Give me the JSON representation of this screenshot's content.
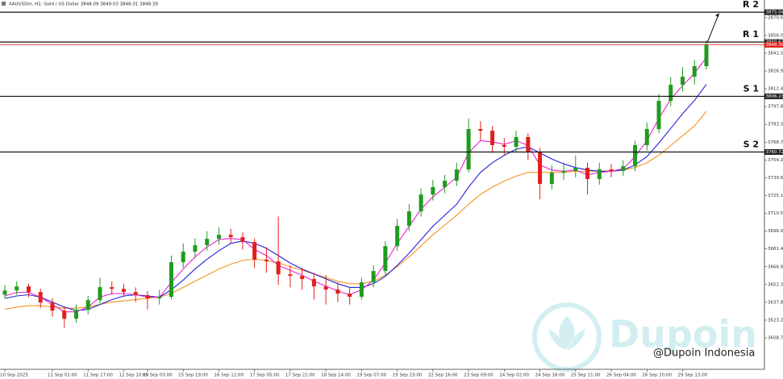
{
  "chart_data": {
    "type": "candlestick",
    "header": "XAUUSDm, H1:  Gold / US Dollar  3848.09 3849.03 3848.01 3848.39",
    "categories": [
      "10 Sep 2025",
      null,
      null,
      null,
      "11 Sep 01:00",
      null,
      null,
      "11 Sep 17:00",
      null,
      null,
      "12 Sep 10:00",
      null,
      "15 Sep 03:00",
      null,
      null,
      "15 Sep 19:00",
      null,
      null,
      "16 Sep 12:00",
      null,
      null,
      "17 Sep 05:00",
      null,
      null,
      "17 Sep 21:00",
      null,
      null,
      "18 Sep 14:00",
      null,
      null,
      "19 Sep 07:00",
      null,
      null,
      "19 Sep 23:00",
      null,
      null,
      "22 Sep 16:00",
      null,
      null,
      "23 Sep 09:00",
      null,
      null,
      "24 Sep 02:00",
      null,
      null,
      "24 Sep 18:00",
      null,
      null,
      "25 Sep 11:00",
      null,
      null,
      "26 Sep 04:00",
      null,
      null,
      "26 Sep 20:00",
      null,
      null,
      "29 Sep 13:00",
      null,
      null
    ],
    "open": [
      3644.0,
      3647.5,
      3650.8,
      3646.2,
      3637.6,
      3631.0,
      3624.4,
      3631.7,
      3639.6,
      3650.2,
      3648.8,
      3646.2,
      3643.6,
      3641.0,
      3642.3,
      3670.6,
      3679.2,
      3684.5,
      3689.7,
      3693.0,
      3691.1,
      3687.1,
      3672.6,
      3671.3,
      3660.7,
      3659.4,
      3656.8,
      3650.8,
      3648.2,
      3644.9,
      3642.3,
      3654.1,
      3663.4,
      3683.8,
      3700.3,
      3712.2,
      3726.0,
      3732.0,
      3737.2,
      3746.5,
      3779.5,
      3778.1,
      3766.3,
      3765.0,
      3772.9,
      3761.0,
      3734.6,
      3743.8,
      3745.2,
      3747.8,
      3738.6,
      3746.5,
      3745.2,
      3749.1,
      3766.3,
      3779.5,
      3802.5,
      3815.7,
      3822.3,
      3830.9
    ],
    "high": [
      3652,
      3655,
      3653,
      3649,
      3641,
      3634,
      3636,
      3643,
      3658,
      3655,
      3653,
      3650,
      3647,
      3648,
      3676,
      3686,
      3690,
      3696,
      3699,
      3698,
      3695,
      3690,
      3683,
      3708,
      3668,
      3666,
      3662,
      3660,
      3654,
      3650,
      3658,
      3668,
      3688,
      3706,
      3718,
      3731,
      3738,
      3742,
      3752,
      3788,
      3786,
      3782,
      3772,
      3778,
      3776,
      3764,
      3750,
      3752,
      3758,
      3752,
      3752,
      3751,
      3754,
      3770,
      3785,
      3808,
      3822,
      3830,
      3836,
      3852
    ],
    "low": [
      3641,
      3644,
      3642,
      3633,
      3626,
      3617,
      3621,
      3628,
      3637,
      3644,
      3642,
      3638,
      3632,
      3636,
      3640,
      3666,
      3674,
      3680,
      3685,
      3686,
      3681,
      3666,
      3662,
      3652,
      3650,
      3648,
      3640,
      3636,
      3638,
      3636,
      3640,
      3650,
      3660,
      3680,
      3696,
      3708,
      3721,
      3727,
      3733,
      3744,
      3770,
      3760,
      3758,
      3761,
      3754,
      3722,
      3730,
      3738,
      3740,
      3726,
      3734,
      3740,
      3741,
      3745,
      3762,
      3776,
      3798,
      3810,
      3816,
      3828
    ],
    "close": [
      3647.5,
      3650.8,
      3646.2,
      3637.6,
      3631.0,
      3624.4,
      3631.7,
      3639.6,
      3650.2,
      3648.8,
      3646.2,
      3643.6,
      3641.0,
      3642.3,
      3670.6,
      3679.2,
      3684.5,
      3689.7,
      3693.0,
      3691.1,
      3687.1,
      3672.6,
      3671.3,
      3660.7,
      3659.4,
      3656.8,
      3650.8,
      3648.2,
      3644.9,
      3642.3,
      3654.1,
      3663.4,
      3683.8,
      3700.3,
      3712.2,
      3726.0,
      3732.0,
      3737.2,
      3746.5,
      3779.5,
      3778.1,
      3766.3,
      3765.0,
      3772.9,
      3761.0,
      3734.6,
      3743.8,
      3745.2,
      3747.8,
      3738.6,
      3746.5,
      3745.2,
      3749.1,
      3766.3,
      3779.5,
      3802.5,
      3815.7,
      3822.3,
      3830.9,
      3848.7
    ],
    "up_color": "#1e9c1e",
    "down_color": "#e0201c",
    "series": [
      {
        "color": "#f7931e",
        "values": [
          3632,
          3634,
          3635,
          3635,
          3634,
          3633,
          3633,
          3634,
          3636,
          3638,
          3639,
          3640,
          3641,
          3642,
          3645,
          3650,
          3655,
          3660,
          3665,
          3669,
          3672,
          3673,
          3672,
          3670,
          3667,
          3664,
          3661,
          3658,
          3655,
          3653,
          3653,
          3655,
          3660,
          3667,
          3675,
          3684,
          3693,
          3701,
          3709,
          3718,
          3726,
          3732,
          3737,
          3741,
          3744,
          3744,
          3744,
          3744,
          3745,
          3745,
          3745,
          3745,
          3746,
          3748,
          3752,
          3758,
          3766,
          3774,
          3782,
          3794
        ]
      },
      {
        "color": "#2323d8",
        "values": [
          3641,
          3643,
          3644,
          3642,
          3638,
          3634,
          3631,
          3632,
          3636,
          3640,
          3643,
          3644,
          3643,
          3642,
          3648,
          3656,
          3665,
          3673,
          3680,
          3686,
          3688,
          3686,
          3682,
          3676,
          3670,
          3665,
          3661,
          3657,
          3653,
          3650,
          3650,
          3653,
          3659,
          3668,
          3678,
          3689,
          3700,
          3709,
          3718,
          3732,
          3744,
          3752,
          3758,
          3763,
          3765,
          3760,
          3755,
          3751,
          3748,
          3746,
          3745,
          3745,
          3746,
          3750,
          3757,
          3768,
          3780,
          3792,
          3803,
          3816
        ]
      },
      {
        "color": "#ee22cc",
        "values": [
          3643,
          3646,
          3646,
          3642,
          3636,
          3630,
          3630,
          3634,
          3642,
          3645,
          3645,
          3644,
          3642,
          3642,
          3654,
          3665,
          3675,
          3683,
          3689,
          3690,
          3689,
          3681,
          3676,
          3668,
          3664,
          3660,
          3655,
          3651,
          3647,
          3644,
          3648,
          3656,
          3670,
          3686,
          3700,
          3714,
          3724,
          3732,
          3740,
          3760,
          3770,
          3769,
          3767,
          3770,
          3766,
          3750,
          3746,
          3745,
          3746,
          3742,
          3744,
          3745,
          3747,
          3757,
          3770,
          3788,
          3804,
          3815,
          3825,
          3838
        ]
      }
    ],
    "levels": [
      {
        "label": "R 2",
        "value": 3875.04,
        "tag": "3875.04"
      },
      {
        "label": "R 1",
        "value": 3850.63,
        "tag": "3850.63"
      },
      {
        "label": "S 1",
        "value": 3806.23,
        "tag": "3806.23"
      },
      {
        "label": "S 2",
        "value": 3760.72,
        "tag": "3760.72"
      }
    ],
    "price_line": {
      "value": 3848.39,
      "tag": "3848.39",
      "color": "#e0201c"
    },
    "ylim": [
      3583,
      3885
    ],
    "yticks": [
      {
        "value": 3870.6,
        "label": "3870.60"
      },
      {
        "value": 3856.05,
        "label": "3856.05"
      },
      {
        "value": 3841.5,
        "label": "3841.50"
      },
      {
        "value": 3826.95,
        "label": "3826.95"
      },
      {
        "value": 3812.4,
        "label": "3812.40"
      },
      {
        "value": 3797.85,
        "label": "3797.85"
      },
      {
        "value": 3783.3,
        "label": "3783.30"
      },
      {
        "value": 3768.75,
        "label": "3768.75"
      },
      {
        "value": 3754.2,
        "label": "3754.20"
      },
      {
        "value": 3739.65,
        "label": "3739.65"
      },
      {
        "value": 3725.1,
        "label": "3725.10"
      },
      {
        "value": 3710.55,
        "label": "3710.55"
      },
      {
        "value": 3696.0,
        "label": "3696.00"
      },
      {
        "value": 3681.45,
        "label": "3681.45"
      },
      {
        "value": 3666.9,
        "label": "3666.90"
      },
      {
        "value": 3652.35,
        "label": "3652.35"
      },
      {
        "value": 3637.8,
        "label": "3637.80"
      },
      {
        "value": 3623.25,
        "label": "3623.25"
      },
      {
        "value": 3608.7,
        "label": "3608.70"
      }
    ],
    "watermark": "Dupoin",
    "credit": "@Dupoin Indonesia"
  }
}
